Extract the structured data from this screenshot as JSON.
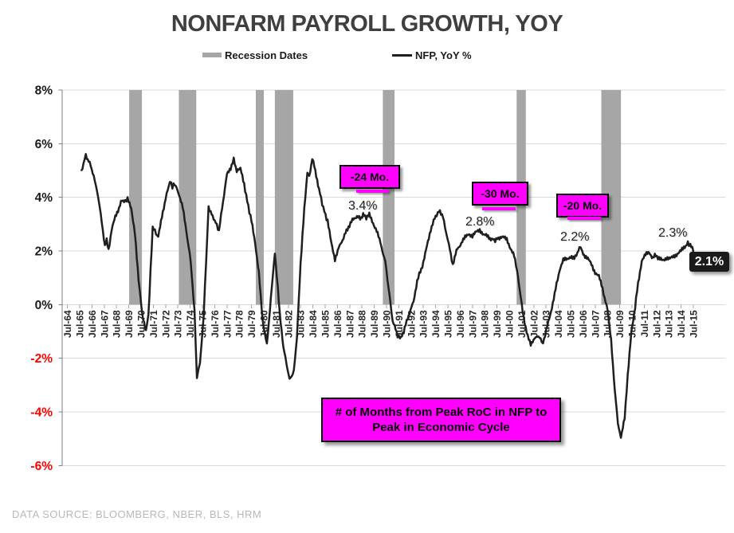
{
  "page": {
    "title": "NONFARM PAYROLL GROWTH, YOY",
    "source_note": "DATA SOURCE:  BLOOMBERG,  NBER,  BLS, HRM"
  },
  "legend": {
    "recession": "Recession Dates",
    "nfp": "NFP, YoY %"
  },
  "annotations": {
    "minus24": "-24 Mo.",
    "minus30": "-30 Mo.",
    "minus20": "-20 Mo.",
    "note_line1": "# of Months from Peak RoC in NFP to",
    "note_line2": "Peak in Economic Cycle",
    "peak_88": "3.4%",
    "peak_98": "2.8%",
    "peak_06": "2.2%",
    "peak_15": "2.3%",
    "current": "2.1%"
  },
  "colors": {
    "title": "#3F3F3F",
    "line": "#1F1F1F",
    "recession_band": "#A6A6A6",
    "gridline": "#D9D9D9",
    "axis": "#808080",
    "tick": "#A6A6A6",
    "x_label": "#262626",
    "y_label_positive": "#1A1A1A",
    "y_label_negative": "#FF0000",
    "magenta": "#FF00FF",
    "callout_bg": "#1A1A1A",
    "callout_text": "#FFFFFF",
    "source": "#B8B8B8"
  },
  "chart_data": {
    "type": "line",
    "title": "NONFARM PAYROLL GROWTH, YOY",
    "xlabel": "",
    "ylabel": "",
    "ylim": [
      -6,
      8
    ],
    "x_domain_years": [
      1964.5,
      2015.5
    ],
    "grid": "horizontal",
    "legend_position": "top",
    "y_axis": {
      "tick_labels": [
        "8%",
        "6%",
        "4%",
        "2%",
        "0%",
        "-2%",
        "-4%",
        "-6%"
      ],
      "tick_values": [
        8,
        6,
        4,
        2,
        0,
        -2,
        -4,
        -6
      ]
    },
    "x_axis": {
      "tick_labels": [
        "Jul-64",
        "Jul-65",
        "Jul-66",
        "Jul-67",
        "Jul-68",
        "Jul-69",
        "Jul-70",
        "Jul-71",
        "Jul-72",
        "Jul-73",
        "Jul-74",
        "Jul-75",
        "Jul-76",
        "Jul-77",
        "Jul-78",
        "Jul-79",
        "Jul-80",
        "Jul-81",
        "Jul-82",
        "Jul-83",
        "Jul-84",
        "Jul-85",
        "Jul-86",
        "Jul-87",
        "Jul-88",
        "Jul-89",
        "Jul-90",
        "Jul-91",
        "Jul-92",
        "Jul-93",
        "Jul-94",
        "Jul-95",
        "Jul-96",
        "Jul-97",
        "Jul-98",
        "Jul-99",
        "Jul-00",
        "Jul-01",
        "Jul-02",
        "Jul-03",
        "Jul-04",
        "Jul-05",
        "Jul-06",
        "Jul-07",
        "Jul-08",
        "Jul-09",
        "Jul-10",
        "Jul-11",
        "Jul-12",
        "Jul-13",
        "Jul-14",
        "Jul-15"
      ]
    },
    "recession_bands": [
      [
        1969.53,
        1970.57
      ],
      [
        1973.58,
        1975.0
      ],
      [
        1979.85,
        1980.5
      ],
      [
        1981.4,
        1982.9
      ],
      [
        1990.2,
        1991.15
      ],
      [
        2001.1,
        2001.85
      ],
      [
        2008.0,
        2009.6
      ]
    ],
    "series": [
      {
        "name": "NFP, YoY %",
        "points": [
          [
            1965.65,
            5.0
          ],
          [
            1965.8,
            5.25
          ],
          [
            1966.0,
            5.6
          ],
          [
            1966.15,
            5.4
          ],
          [
            1966.4,
            5.2
          ],
          [
            1966.9,
            4.3
          ],
          [
            1967.3,
            3.1
          ],
          [
            1967.55,
            2.15
          ],
          [
            1967.7,
            2.4
          ],
          [
            1967.85,
            2.05
          ],
          [
            1968.1,
            2.75
          ],
          [
            1968.4,
            3.3
          ],
          [
            1968.7,
            3.6
          ],
          [
            1968.95,
            3.9
          ],
          [
            1969.2,
            3.85
          ],
          [
            1969.4,
            3.95
          ],
          [
            1969.7,
            3.55
          ],
          [
            1970.0,
            2.7
          ],
          [
            1970.3,
            0.9
          ],
          [
            1970.6,
            -0.4
          ],
          [
            1970.9,
            -0.95
          ],
          [
            1971.1,
            -0.4
          ],
          [
            1971.45,
            2.9
          ],
          [
            1971.9,
            2.5
          ],
          [
            1972.2,
            3.3
          ],
          [
            1972.5,
            3.95
          ],
          [
            1972.85,
            4.6
          ],
          [
            1973.05,
            4.4
          ],
          [
            1973.25,
            4.5
          ],
          [
            1973.6,
            4.1
          ],
          [
            1973.9,
            3.6
          ],
          [
            1974.2,
            2.7
          ],
          [
            1974.55,
            1.6
          ],
          [
            1974.85,
            -0.2
          ],
          [
            1975.05,
            -2.7
          ],
          [
            1975.3,
            -2.2
          ],
          [
            1975.6,
            -0.4
          ],
          [
            1975.8,
            1.6
          ],
          [
            1976.0,
            3.65
          ],
          [
            1976.25,
            3.35
          ],
          [
            1976.5,
            3.15
          ],
          [
            1976.85,
            2.75
          ],
          [
            1977.1,
            3.6
          ],
          [
            1977.5,
            4.85
          ],
          [
            1977.8,
            5.1
          ],
          [
            1978.05,
            5.4
          ],
          [
            1978.3,
            5.0
          ],
          [
            1978.6,
            5.05
          ],
          [
            1978.9,
            4.5
          ],
          [
            1979.15,
            3.85
          ],
          [
            1979.5,
            3.1
          ],
          [
            1979.8,
            2.3
          ],
          [
            1980.1,
            1.2
          ],
          [
            1980.4,
            -0.6
          ],
          [
            1980.75,
            -1.5
          ],
          [
            1981.0,
            -0.2
          ],
          [
            1981.4,
            1.95
          ],
          [
            1981.8,
            -0.3
          ],
          [
            1982.1,
            -1.6
          ],
          [
            1982.6,
            -2.8
          ],
          [
            1982.95,
            -2.5
          ],
          [
            1983.2,
            -1.2
          ],
          [
            1983.5,
            1.5
          ],
          [
            1983.8,
            3.6
          ],
          [
            1984.05,
            4.9
          ],
          [
            1984.2,
            4.75
          ],
          [
            1984.45,
            5.45
          ],
          [
            1984.7,
            5.0
          ],
          [
            1985.0,
            4.3
          ],
          [
            1985.35,
            3.6
          ],
          [
            1985.7,
            3.1
          ],
          [
            1986.0,
            2.3
          ],
          [
            1986.3,
            1.7
          ],
          [
            1986.6,
            2.1
          ],
          [
            1987.0,
            2.5
          ],
          [
            1987.4,
            2.9
          ],
          [
            1987.8,
            3.2
          ],
          [
            1988.1,
            3.3
          ],
          [
            1988.35,
            3.2
          ],
          [
            1988.6,
            3.35
          ],
          [
            1988.85,
            3.25
          ],
          [
            1989.1,
            3.35
          ],
          [
            1989.4,
            3.05
          ],
          [
            1989.7,
            2.75
          ],
          [
            1990.0,
            2.3
          ],
          [
            1990.4,
            1.6
          ],
          [
            1990.75,
            0.3
          ],
          [
            1991.0,
            -0.6
          ],
          [
            1991.4,
            -1.15
          ],
          [
            1991.6,
            -1.25
          ],
          [
            1991.9,
            -1.0
          ],
          [
            1992.3,
            -0.4
          ],
          [
            1992.7,
            0.1
          ],
          [
            1993.0,
            0.9
          ],
          [
            1993.5,
            1.55
          ],
          [
            1993.8,
            2.2
          ],
          [
            1994.1,
            2.8
          ],
          [
            1994.5,
            3.3
          ],
          [
            1994.85,
            3.5
          ],
          [
            1995.1,
            3.25
          ],
          [
            1995.5,
            2.4
          ],
          [
            1995.9,
            1.5
          ],
          [
            1996.2,
            2.0
          ],
          [
            1996.6,
            2.3
          ],
          [
            1996.9,
            2.5
          ],
          [
            1997.2,
            2.65
          ],
          [
            1997.5,
            2.55
          ],
          [
            1997.8,
            2.7
          ],
          [
            1998.1,
            2.8
          ],
          [
            1998.4,
            2.6
          ],
          [
            1998.7,
            2.55
          ],
          [
            1999.0,
            2.45
          ],
          [
            1999.35,
            2.4
          ],
          [
            1999.7,
            2.5
          ],
          [
            2000.0,
            2.5
          ],
          [
            2000.3,
            2.45
          ],
          [
            2000.6,
            2.1
          ],
          [
            2000.9,
            1.8
          ],
          [
            2001.2,
            1.1
          ],
          [
            2001.6,
            -0.3
          ],
          [
            2002.0,
            -1.2
          ],
          [
            2002.25,
            -1.45
          ],
          [
            2002.55,
            -1.3
          ],
          [
            2002.8,
            -1.15
          ],
          [
            2003.05,
            -1.3
          ],
          [
            2003.25,
            -1.45
          ],
          [
            2003.6,
            -0.8
          ],
          [
            2003.9,
            -0.25
          ],
          [
            2004.2,
            0.4
          ],
          [
            2004.6,
            1.3
          ],
          [
            2004.9,
            1.65
          ],
          [
            2005.2,
            1.7
          ],
          [
            2005.5,
            1.8
          ],
          [
            2005.8,
            1.7
          ],
          [
            2006.05,
            1.95
          ],
          [
            2006.3,
            2.15
          ],
          [
            2006.6,
            1.85
          ],
          [
            2006.9,
            1.7
          ],
          [
            2007.2,
            1.5
          ],
          [
            2007.5,
            1.2
          ],
          [
            2007.8,
            1.05
          ],
          [
            2008.1,
            0.6
          ],
          [
            2008.5,
            -0.2
          ],
          [
            2008.8,
            -1.3
          ],
          [
            2009.1,
            -3.2
          ],
          [
            2009.35,
            -4.4
          ],
          [
            2009.6,
            -5.0
          ],
          [
            2009.9,
            -4.2
          ],
          [
            2010.15,
            -2.7
          ],
          [
            2010.45,
            -1.0
          ],
          [
            2010.75,
            -0.1
          ],
          [
            2011.0,
            0.8
          ],
          [
            2011.3,
            1.65
          ],
          [
            2011.6,
            1.85
          ],
          [
            2011.9,
            1.95
          ],
          [
            2012.2,
            1.75
          ],
          [
            2012.45,
            1.85
          ],
          [
            2012.7,
            1.7
          ],
          [
            2013.0,
            1.65
          ],
          [
            2013.3,
            1.75
          ],
          [
            2013.6,
            1.7
          ],
          [
            2013.9,
            1.8
          ],
          [
            2014.2,
            1.9
          ],
          [
            2014.5,
            2.0
          ],
          [
            2014.8,
            2.15
          ],
          [
            2015.05,
            2.3
          ],
          [
            2015.25,
            2.2
          ],
          [
            2015.5,
            2.05
          ]
        ]
      }
    ],
    "data_labels": [
      {
        "x": 1989.0,
        "y": 3.4,
        "text": "3.4%"
      },
      {
        "x": 1998.2,
        "y": 2.8,
        "text": "2.8%"
      },
      {
        "x": 2006.3,
        "y": 2.2,
        "text": "2.2%"
      },
      {
        "x": 2015.05,
        "y": 2.3,
        "text": "2.3%"
      },
      {
        "x": 2015.5,
        "y": 2.1,
        "text": "2.1%"
      }
    ],
    "callout_boxes": [
      "-24 Mo.",
      "-30 Mo.",
      "-20 Mo.",
      "# of Months from Peak RoC in NFP to Peak in Economic Cycle"
    ]
  }
}
